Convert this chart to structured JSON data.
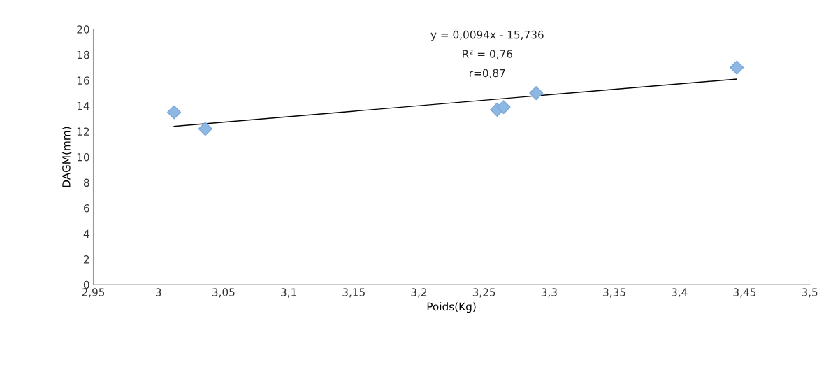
{
  "chart_data": {
    "type": "scatter",
    "xlabel": "Poids(Kg)",
    "ylabel": "DAGM(mm)",
    "annotations": [
      "y = 0,0094x - 15,736",
      "R² = 0,76",
      "r=0,87"
    ],
    "series": [
      {
        "color": "#8db8e3",
        "marker": "diamond",
        "x": [
          3.012,
          3.036,
          3.26,
          3.265,
          3.29,
          3.444
        ],
        "values": [
          13.5,
          12.2,
          13.7,
          13.9,
          15.0,
          17.0
        ]
      },
      {
        "type": "line",
        "color": "#000000",
        "marker": "none",
        "line_style": "solid",
        "x": [
          3.012,
          3.444
        ],
        "values": [
          12.4,
          16.1
        ]
      }
    ],
    "xlim": [
      2.95,
      3.5
    ],
    "xticks": [
      {
        "value": 2.95,
        "label": "2,95"
      },
      3,
      {
        "value": 3.05,
        "label": "3,05"
      },
      {
        "value": 3.1,
        "label": "3,1"
      },
      {
        "value": 3.15,
        "label": "3,15"
      },
      {
        "value": 3.2,
        "label": "3,2"
      },
      {
        "value": 3.25,
        "label": "3,25"
      },
      {
        "value": 3.3,
        "label": "3,3"
      },
      {
        "value": 3.35,
        "label": "3,35"
      },
      {
        "value": 3.4,
        "label": "3,4"
      },
      {
        "value": 3.45,
        "label": "3,45"
      },
      {
        "value": 3.5,
        "label": "3,5"
      }
    ],
    "ylim": [
      0,
      20
    ],
    "yticks": [
      0,
      2,
      4,
      6,
      8,
      10,
      12,
      14,
      16,
      18,
      20
    ],
    "grid": false,
    "legend": false
  }
}
